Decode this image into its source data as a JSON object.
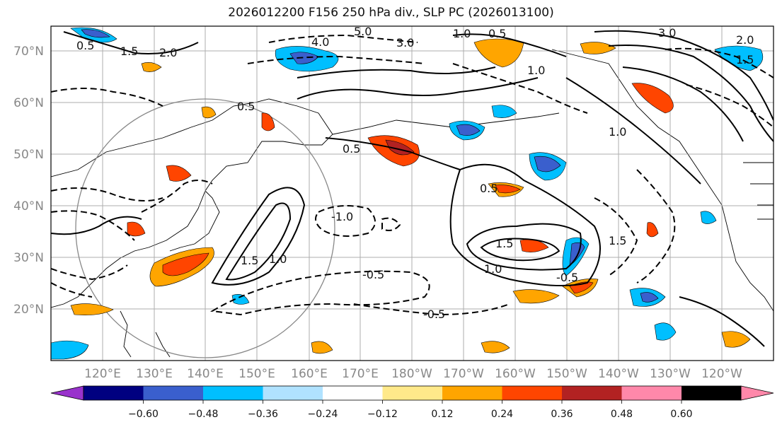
{
  "title": "2026012200 F156 250 hPa div., SLP PC (2026013100)",
  "map": {
    "lat_labels": [
      "70°N",
      "60°N",
      "50°N",
      "40°N",
      "30°N",
      "20°N"
    ],
    "lon_labels": [
      "120°E",
      "130°E",
      "140°E",
      "150°E",
      "160°E",
      "170°E",
      "180°W",
      "170°W",
      "160°W",
      "150°W",
      "140°W",
      "130°W",
      "120°W"
    ],
    "contour_labels": [
      "0.5",
      "1.5",
      "2.0",
      "4.0",
      "3.0",
      "5.0",
      "1.0",
      "0.5",
      "1.0",
      "3.0",
      "2.0",
      "1.5",
      "0.5",
      "1.0",
      "-1.0",
      "0.5",
      "1.5",
      "1.0",
      "1.0",
      "1.5",
      "-0.5",
      "-0.5",
      "-0.5",
      "1.5",
      "0.5"
    ],
    "colors": {
      "neg_extreme": "#9932cc",
      "neg_060": "#000080",
      "neg_048": "#3a5fcd",
      "neg_036": "#00bfff",
      "neg_024": "#b0e2ff",
      "neutral": "#ffffff",
      "pos_012": "#ffe98a",
      "pos_024": "#ffa500",
      "pos_036": "#ff4500",
      "pos_048": "#b22222",
      "pos_extreme": "#ff88aa"
    }
  },
  "colorbar": {
    "ticks": [
      "−0.60",
      "−0.48",
      "−0.36",
      "−0.24",
      "−0.12",
      "0.12",
      "0.24",
      "0.36",
      "0.48",
      "0.60"
    ],
    "colors": [
      "#9932cc",
      "#000080",
      "#3a5fcd",
      "#00bfff",
      "#b0e2ff",
      "#ffffff",
      "#ffe98a",
      "#ffa500",
      "#ff4500",
      "#b22222",
      "#ff88aa"
    ]
  }
}
